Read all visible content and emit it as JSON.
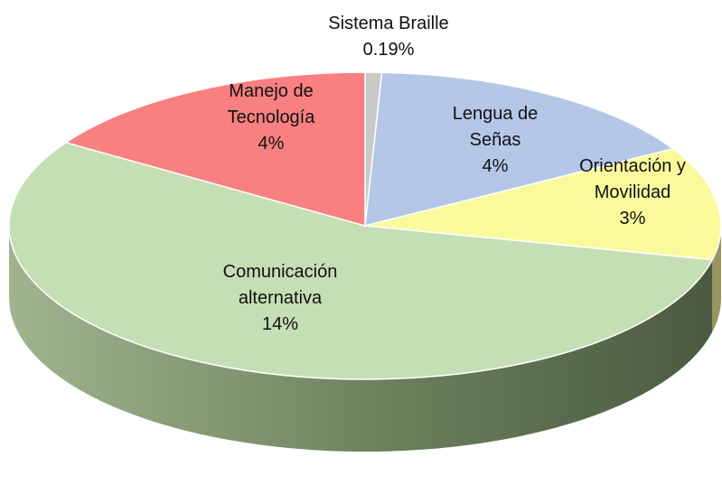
{
  "chart_data": {
    "type": "pie",
    "categories": [
      "Sistema Braille",
      "Lengua de Señas",
      "Orientación y Movilidad",
      "Comunicación alternativa",
      "Manejo de Tecnología"
    ],
    "values": [
      0.19,
      4,
      3,
      14,
      4
    ],
    "value_labels": [
      "0.19%",
      "4%",
      "3%",
      "14%",
      "4%"
    ],
    "colors": [
      "#c9c9c9",
      "#b4c7e7",
      "#fafa9c",
      "#c5dfb4",
      "#f88080"
    ]
  }
}
